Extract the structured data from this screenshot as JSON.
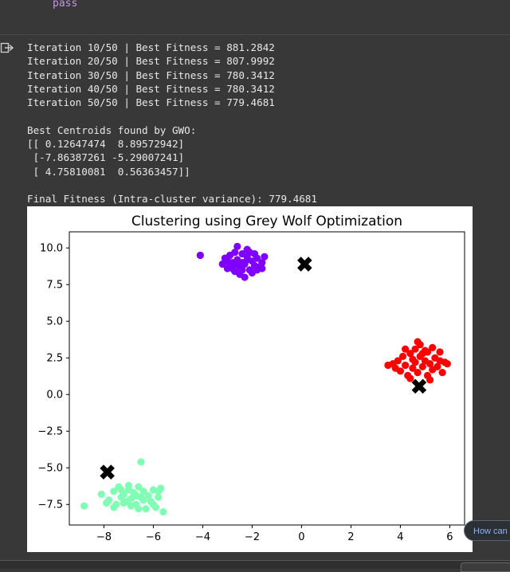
{
  "code": {
    "last_line": "pass"
  },
  "output": {
    "lines": [
      "Iteration 10/50 | Best Fitness = 881.2842",
      "Iteration 20/50 | Best Fitness = 807.9992",
      "Iteration 30/50 | Best Fitness = 780.3412",
      "Iteration 40/50 | Best Fitness = 780.3412",
      "Iteration 50/50 | Best Fitness = 779.4681",
      "",
      "Best Centroids found by GWO:",
      "[[ 0.12647474  8.89572942]",
      " [-7.86387261 -5.29007241]",
      " [ 4.75810081  0.56363457]]",
      "",
      "Final Fitness (Intra-cluster variance): 779.4681"
    ]
  },
  "chart_data": {
    "type": "scatter",
    "title": "Clustering using Grey Wolf Optimization",
    "xlabel": "",
    "ylabel": "",
    "xlim": [
      -9.4,
      6.6
    ],
    "ylim": [
      -8.9,
      11.1
    ],
    "xticks": [
      -8,
      -6,
      -4,
      -2,
      0,
      2,
      4,
      6
    ],
    "xtick_labels": [
      "−8",
      "−6",
      "−4",
      "−2",
      "0",
      "2",
      "4",
      "6"
    ],
    "yticks": [
      10.0,
      7.5,
      5.0,
      2.5,
      0.0,
      -2.5,
      -5.0,
      -7.5
    ],
    "ytick_labels": [
      "10.0",
      "7.5",
      "5.0",
      "2.5",
      "0.0",
      "−2.5",
      "−5.0",
      "−7.5"
    ],
    "grid": false,
    "series": [
      {
        "color": "#8000ff",
        "points": [
          [
            -4.1,
            9.5
          ],
          [
            -3.1,
            9.3
          ],
          [
            -3.0,
            8.6
          ],
          [
            -2.9,
            8.8
          ],
          [
            -2.8,
            9.0
          ],
          [
            -2.7,
            8.4
          ],
          [
            -2.6,
            9.2
          ],
          [
            -2.5,
            8.7
          ],
          [
            -2.4,
            9.6
          ],
          [
            -2.3,
            8.9
          ],
          [
            -2.2,
            9.4
          ],
          [
            -2.1,
            8.5
          ],
          [
            -2.0,
            9.1
          ],
          [
            -1.9,
            8.8
          ],
          [
            -1.8,
            9.3
          ],
          [
            -1.7,
            8.7
          ],
          [
            -2.6,
            10.1
          ],
          [
            -2.2,
            9.9
          ],
          [
            -1.6,
            9.0
          ],
          [
            -1.5,
            9.4
          ],
          [
            -3.2,
            8.9
          ],
          [
            -2.9,
            9.5
          ],
          [
            -2.7,
            9.7
          ],
          [
            -2.5,
            8.2
          ],
          [
            -2.3,
            8.0
          ],
          [
            -2.0,
            8.3
          ],
          [
            -1.9,
            9.6
          ],
          [
            -2.4,
            9.0
          ],
          [
            -2.8,
            8.6
          ],
          [
            -2.1,
            9.7
          ],
          [
            -1.8,
            8.5
          ],
          [
            -3.0,
            9.1
          ],
          [
            -2.6,
            8.9
          ],
          [
            -2.2,
            9.2
          ],
          [
            -2.4,
            8.5
          ],
          [
            -1.6,
            8.6
          ]
        ]
      },
      {
        "color": "#ff0000",
        "points": [
          [
            3.5,
            2.0
          ],
          [
            3.7,
            2.1
          ],
          [
            3.9,
            2.3
          ],
          [
            4.0,
            1.6
          ],
          [
            4.1,
            2.6
          ],
          [
            4.2,
            2.0
          ],
          [
            4.3,
            1.3
          ],
          [
            4.4,
            2.8
          ],
          [
            4.5,
            1.8
          ],
          [
            4.6,
            3.1
          ],
          [
            4.6,
            2.2
          ],
          [
            4.7,
            1.5
          ],
          [
            4.8,
            2.6
          ],
          [
            4.8,
            3.4
          ],
          [
            4.9,
            1.9
          ],
          [
            5.0,
            2.3
          ],
          [
            5.1,
            1.3
          ],
          [
            5.1,
            2.9
          ],
          [
            5.2,
            2.1
          ],
          [
            5.3,
            1.7
          ],
          [
            5.3,
            3.2
          ],
          [
            5.4,
            2.5
          ],
          [
            5.5,
            1.9
          ],
          [
            5.6,
            2.9
          ],
          [
            5.7,
            1.5
          ],
          [
            5.8,
            2.2
          ],
          [
            5.9,
            2.1
          ],
          [
            4.4,
            1.1
          ],
          [
            4.7,
            3.6
          ],
          [
            5.0,
            3.0
          ],
          [
            4.2,
            3.1
          ],
          [
            4.9,
            2.8
          ],
          [
            5.2,
            1.0
          ],
          [
            4.5,
            2.4
          ],
          [
            3.8,
            1.8
          ],
          [
            5.6,
            2.3
          ]
        ]
      },
      {
        "color": "#80ffb4",
        "points": [
          [
            -8.8,
            -7.6
          ],
          [
            -8.1,
            -6.8
          ],
          [
            -7.8,
            -7.2
          ],
          [
            -7.6,
            -6.6
          ],
          [
            -7.5,
            -7.5
          ],
          [
            -7.4,
            -6.3
          ],
          [
            -7.3,
            -7.0
          ],
          [
            -7.2,
            -6.8
          ],
          [
            -7.1,
            -7.3
          ],
          [
            -7.0,
            -6.5
          ],
          [
            -6.9,
            -7.1
          ],
          [
            -6.8,
            -6.7
          ],
          [
            -6.7,
            -7.5
          ],
          [
            -6.6,
            -6.3
          ],
          [
            -6.5,
            -4.6
          ],
          [
            -6.5,
            -7.0
          ],
          [
            -6.4,
            -6.6
          ],
          [
            -6.3,
            -7.8
          ],
          [
            -6.2,
            -6.9
          ],
          [
            -6.1,
            -7.3
          ],
          [
            -6.0,
            -6.5
          ],
          [
            -5.9,
            -7.7
          ],
          [
            -5.8,
            -7.0
          ],
          [
            -5.7,
            -6.4
          ],
          [
            -5.6,
            -8.0
          ],
          [
            -7.9,
            -7.4
          ],
          [
            -7.0,
            -6.2
          ],
          [
            -6.6,
            -7.8
          ],
          [
            -7.3,
            -6.5
          ],
          [
            -6.9,
            -7.6
          ],
          [
            -6.4,
            -7.2
          ],
          [
            -7.6,
            -7.7
          ],
          [
            -6.0,
            -7.5
          ],
          [
            -7.2,
            -7.4
          ],
          [
            -6.7,
            -6.9
          ],
          [
            -5.8,
            -6.6
          ]
        ]
      }
    ],
    "centroids": {
      "color": "#000000",
      "marker": "X",
      "points": [
        [
          0.12647474,
          8.89572942
        ],
        [
          -7.86387261,
          -5.29007241
        ],
        [
          4.75810081,
          0.56363457
        ]
      ]
    }
  },
  "ui": {
    "help_chip_label": "How can"
  }
}
